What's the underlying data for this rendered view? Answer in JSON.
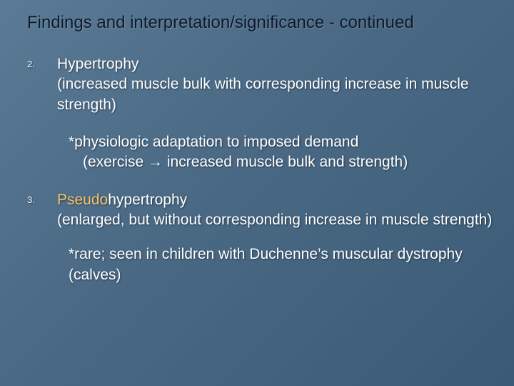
{
  "colors": {
    "background_gradient_start": "#5a7a96",
    "background_gradient_end": "#3a5a76",
    "title_color": "#0e1a2a",
    "body_text_color": "#ffffff",
    "highlight_color": "#f5c56a",
    "text_shadow": "rgba(0,0,0,0.45)"
  },
  "typography": {
    "font_family": "Verdana",
    "title_fontsize": 24,
    "body_fontsize": 21,
    "number_fontsize": 13
  },
  "slide": {
    "title": "Findings and interpretation/significance - continued",
    "items": [
      {
        "number": "2.",
        "heading": "Hypertrophy",
        "description": "(increased muscle bulk with corresponding increase in muscle strength)",
        "note_line1": "*physiologic adaptation to imposed demand",
        "note_line2": "(exercise → increased muscle bulk and strength)"
      },
      {
        "number": "3.",
        "heading_prefix": "Pseudo",
        "heading_rest": "hypertrophy",
        "description": "(enlarged, but without corresponding increase in muscle strength)",
        "note_line1": "*rare; seen in children with Duchenne’s muscular dystrophy (calves)"
      }
    ]
  }
}
